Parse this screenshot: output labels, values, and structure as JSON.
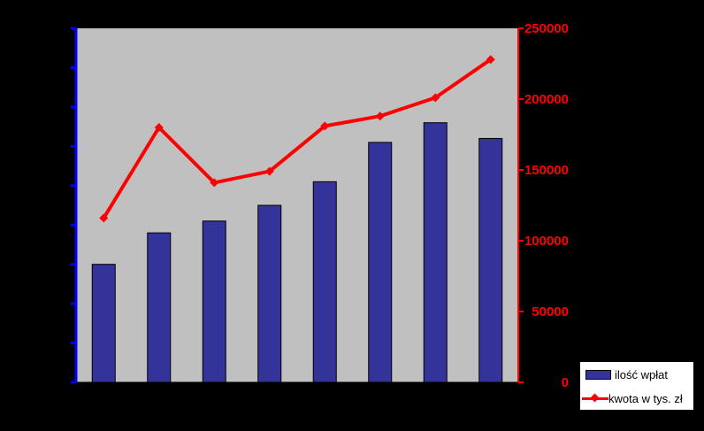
{
  "chart_data": {
    "type": "bar+line",
    "categories": [
      "",
      "",
      "",
      "",
      "",
      "",
      "",
      ""
    ],
    "series": [
      {
        "name": "ilość wpłat",
        "type": "bar",
        "axis": "left",
        "values": [
          3000,
          3800,
          4100,
          4500,
          5100,
          6100,
          6600,
          6200
        ]
      },
      {
        "name": "kwota w tys. zł",
        "type": "line",
        "axis": "right",
        "values": [
          116000,
          180000,
          141000,
          149000,
          181000,
          188000,
          201000,
          228000
        ]
      }
    ],
    "y2lim": [
      0,
      250000
    ],
    "y2ticks": [
      "0",
      "50000",
      "100000",
      "150000",
      "200000",
      "250000"
    ],
    "legend_position": "bottom-right",
    "grid": false,
    "colors": {
      "background": "#000000",
      "plot_area": "#c0c0c0",
      "bar": "#333399",
      "line": "#ff0000",
      "left_axis": "#0000ff",
      "right_axis": "#ff0000"
    }
  }
}
